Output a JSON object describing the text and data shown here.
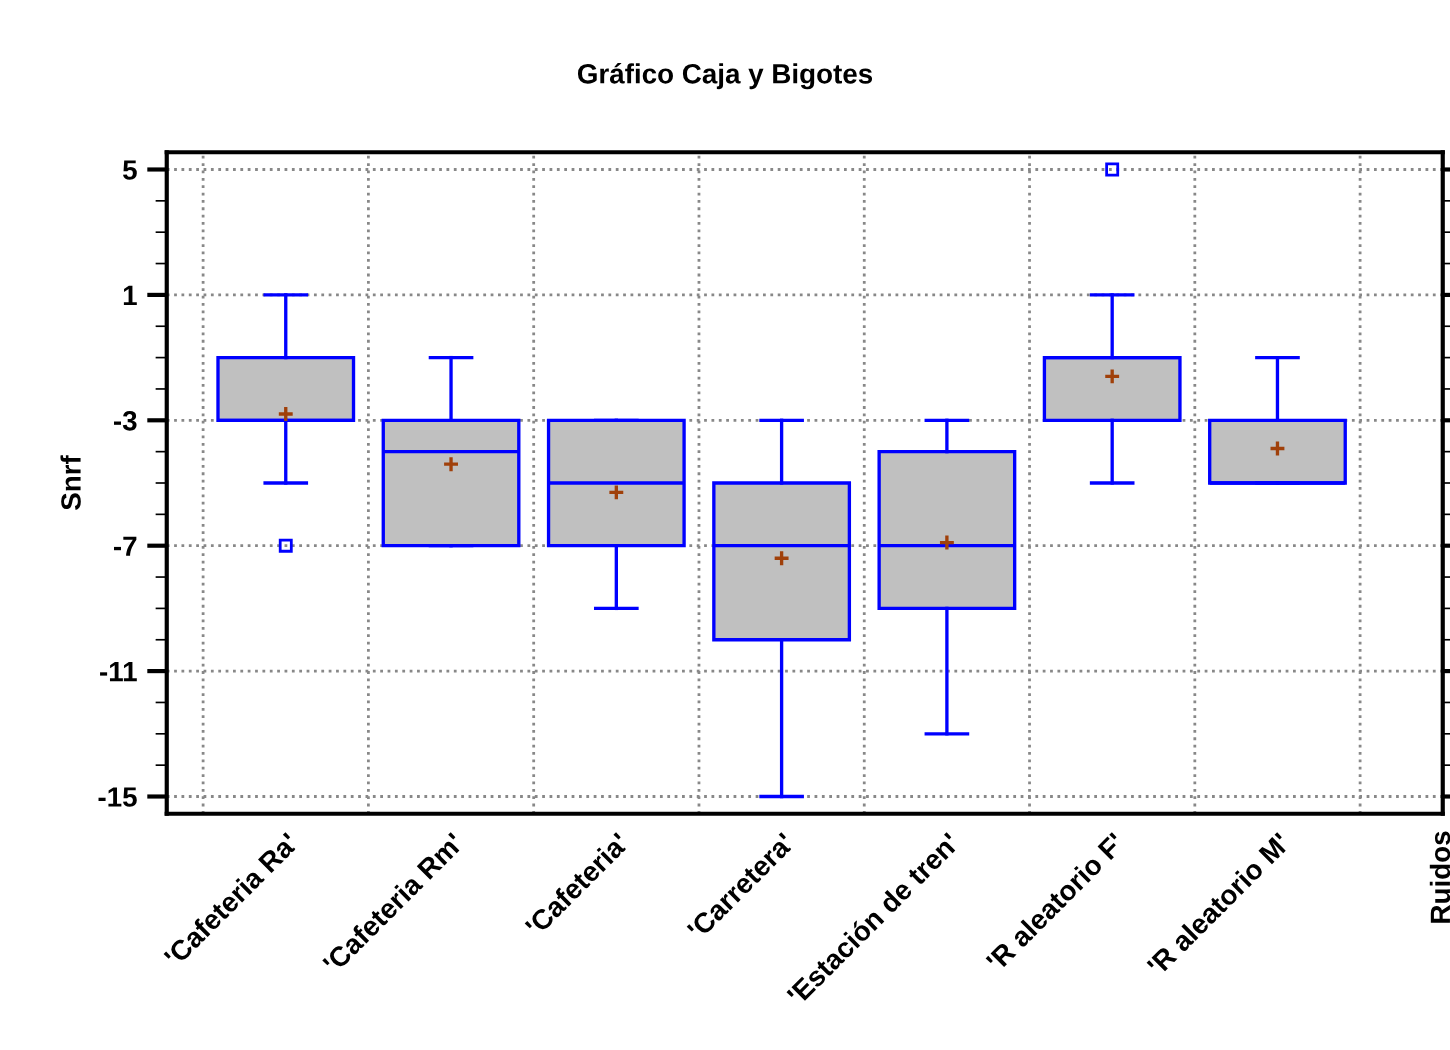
{
  "chart_data": {
    "type": "box",
    "title": "Gráfico Caja y Bigotes",
    "ylabel": "Snrf",
    "categories": [
      "'Cafeteria Ra'",
      "'Cafeteria Rm'",
      "'Cafeteria'",
      "'Carretera'",
      "'Estación de tren'",
      "'R aleatorio F'",
      "'R aleatorio M'",
      "Ruidos"
    ],
    "color": "#c0c0c0",
    "boxes": [
      {
        "low": -5,
        "q1": -3,
        "median": -3,
        "q3": -1,
        "high": 1,
        "mean": -2.8,
        "outliers": [
          -7
        ]
      },
      {
        "low": -7,
        "q1": -7,
        "median": -4,
        "q3": -3,
        "high": -1,
        "mean": -4.4
      },
      {
        "low": -9,
        "q1": -7,
        "median": -5,
        "q3": -3,
        "high": -3,
        "mean": -5.3
      },
      {
        "low": -15,
        "q1": -10,
        "median": -7,
        "q3": -5,
        "high": -3,
        "mean": -7.4
      },
      {
        "low": -13,
        "q1": -9,
        "median": -7,
        "q3": -4,
        "high": -3,
        "mean": -6.9
      },
      {
        "low": -5,
        "q1": -3,
        "median": -1,
        "q3": -1,
        "high": 1,
        "mean": -1.6,
        "outliers": [
          5
        ]
      },
      {
        "low": -5,
        "q1": -5,
        "median": -5,
        "q3": -3,
        "high": -1,
        "mean": -3.9
      },
      null
    ],
    "ylim": [
      -15.55,
      5.55
    ],
    "yticks": [
      -15,
      -11,
      -7,
      -3,
      1,
      5
    ],
    "grid": true
  }
}
